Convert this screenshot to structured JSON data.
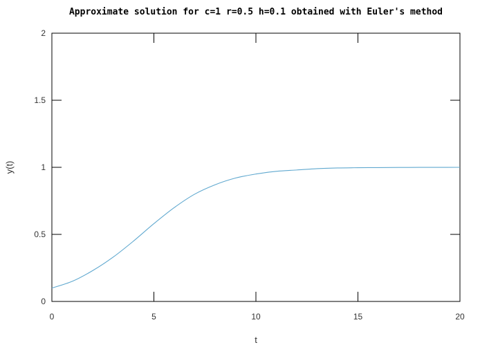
{
  "chart_data": {
    "type": "line",
    "title": "Approximate solution for c=1 r=0.5 h=0.1 obtained with Euler's method",
    "xlabel": "t",
    "ylabel": "y(t)",
    "xlim": [
      0,
      20
    ],
    "ylim": [
      0,
      2
    ],
    "grid": false,
    "x_ticks": [
      "0",
      "5",
      "10",
      "15",
      "20"
    ],
    "y_ticks": [
      "0",
      "0.5",
      "1",
      "1.5",
      "2"
    ],
    "series": [
      {
        "color": "#5fa8cf",
        "x": [
          0,
          1,
          2,
          3,
          4,
          5,
          6,
          7,
          8,
          9,
          10,
          11,
          12,
          13,
          14,
          15,
          16,
          17,
          18,
          19,
          20
        ],
        "y": [
          0.1,
          0.15,
          0.23,
          0.33,
          0.45,
          0.58,
          0.7,
          0.8,
          0.87,
          0.92,
          0.95,
          0.97,
          0.98,
          0.99,
          0.995,
          0.997,
          0.998,
          0.999,
          0.9995,
          0.9998,
          1.0
        ]
      }
    ]
  }
}
